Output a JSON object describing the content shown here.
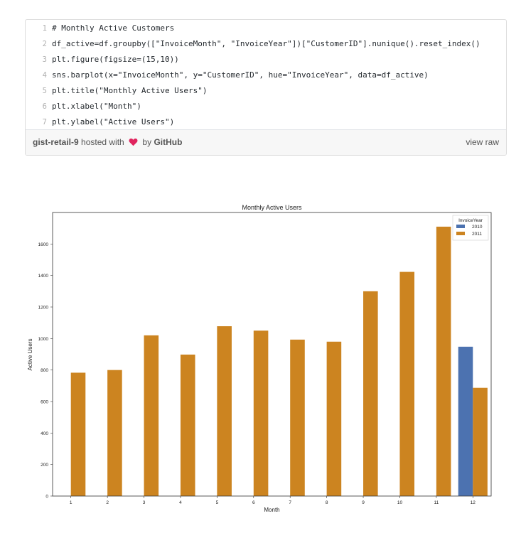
{
  "gist": {
    "lines": [
      {
        "num": "1",
        "code": "# Monthly Active Customers"
      },
      {
        "num": "2",
        "code": "df_active=df.groupby([\"InvoiceMonth\", \"InvoiceYear\"])[\"CustomerID\"].nunique().reset_index()"
      },
      {
        "num": "3",
        "code": "plt.figure(figsize=(15,10))"
      },
      {
        "num": "4",
        "code": "sns.barplot(x=\"InvoiceMonth\", y=\"CustomerID\", hue=\"InvoiceYear\", data=df_active)"
      },
      {
        "num": "5",
        "code": "plt.title(\"Monthly Active Users\")"
      },
      {
        "num": "6",
        "code": "plt.xlabel(\"Month\")"
      },
      {
        "num": "7",
        "code": "plt.ylabel(\"Active Users\")"
      }
    ],
    "meta": {
      "gist_name": "gist-retail-9",
      "hosted_with": "hosted with",
      "by": "by",
      "github": "GitHub",
      "view_raw": "view raw",
      "heart_color": "#e0245e"
    }
  },
  "chart_data": {
    "type": "bar",
    "title": "Monthly Active Users",
    "xlabel": "Month",
    "ylabel": "Active Users",
    "categories": [
      "1",
      "2",
      "3",
      "4",
      "5",
      "6",
      "7",
      "8",
      "9",
      "10",
      "11",
      "12"
    ],
    "series": [
      {
        "name": "2010",
        "color": "#4c72b0",
        "values": [
          null,
          null,
          null,
          null,
          null,
          null,
          null,
          null,
          null,
          null,
          null,
          948
        ]
      },
      {
        "name": "2011",
        "color": "#cc8420",
        "values": [
          783,
          800,
          1020,
          898,
          1078,
          1050,
          993,
          980,
          1300,
          1423,
          1710,
          687
        ]
      }
    ],
    "ylim": [
      0,
      1800
    ],
    "yticks": [
      0,
      200,
      400,
      600,
      800,
      1000,
      1200,
      1400,
      1600
    ],
    "legend": {
      "title": "InvoiceYear",
      "placement": "top-right"
    },
    "grid": false
  }
}
